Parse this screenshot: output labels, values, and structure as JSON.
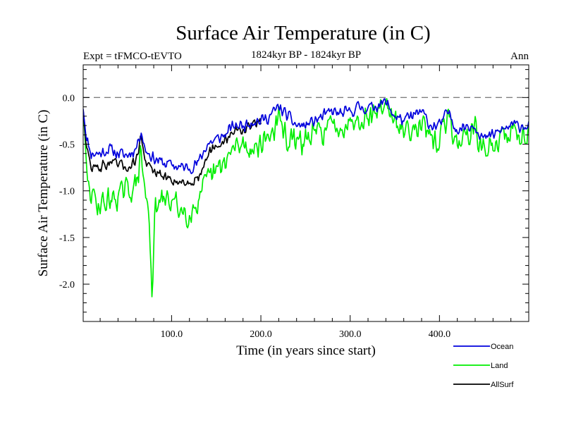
{
  "chart_data": {
    "type": "line",
    "title": "Surface Air Temperature (in C)",
    "subtitle_left": "Expt = tFMCO-tEVTO",
    "subtitle_center": "1824kyr BP - 1824kyr BP",
    "subtitle_right": "Ann",
    "xlabel": "Time (in years since start)",
    "ylabel": "Surface Air Temperature (in C)",
    "xlim": [
      1,
      500
    ],
    "ylim": [
      -2.4,
      0.35
    ],
    "xticks": [
      100,
      200,
      300,
      400
    ],
    "xtick_labels": [
      "100.0",
      "200.0",
      "300.0",
      "400.0"
    ],
    "yticks": [
      0.0,
      -0.5,
      -1.0,
      -1.5,
      -2.0
    ],
    "ytick_labels": [
      "0.0",
      "-0.5",
      "-1.0",
      "-1.5",
      "-2.0"
    ],
    "reference_line": 0.0,
    "series": [
      {
        "name": "Ocean",
        "color": "#0000dd",
        "anchors_x": [
          1,
          5,
          10,
          20,
          30,
          40,
          50,
          60,
          66,
          70,
          80,
          90,
          100,
          110,
          120,
          130,
          140,
          150,
          160,
          170,
          180,
          190,
          200,
          210,
          220,
          230,
          240,
          250,
          260,
          270,
          280,
          290,
          300,
          310,
          320,
          330,
          340,
          350,
          360,
          370,
          380,
          390,
          400,
          410,
          420,
          430,
          440,
          450,
          460,
          470,
          480,
          490,
          500
        ],
        "anchors_y": [
          -0.1,
          -0.45,
          -0.6,
          -0.6,
          -0.55,
          -0.6,
          -0.62,
          -0.55,
          -0.35,
          -0.55,
          -0.65,
          -0.7,
          -0.72,
          -0.75,
          -0.75,
          -0.7,
          -0.5,
          -0.45,
          -0.4,
          -0.3,
          -0.3,
          -0.25,
          -0.25,
          -0.2,
          -0.1,
          -0.2,
          -0.3,
          -0.3,
          -0.25,
          -0.2,
          -0.15,
          -0.18,
          -0.15,
          -0.1,
          -0.12,
          -0.08,
          -0.05,
          -0.2,
          -0.25,
          -0.2,
          -0.15,
          -0.3,
          -0.3,
          -0.15,
          -0.35,
          -0.3,
          -0.3,
          -0.45,
          -0.4,
          -0.35,
          -0.3,
          -0.3,
          -0.3
        ],
        "noise": 0.08,
        "seed": 11
      },
      {
        "name": "Land",
        "color": "#00ee00",
        "anchors_x": [
          1,
          5,
          10,
          20,
          30,
          40,
          50,
          60,
          66,
          70,
          75,
          78,
          82,
          90,
          100,
          110,
          120,
          130,
          140,
          150,
          160,
          170,
          180,
          190,
          200,
          210,
          220,
          230,
          240,
          250,
          260,
          270,
          280,
          290,
          300,
          310,
          320,
          330,
          340,
          350,
          360,
          370,
          380,
          390,
          400,
          410,
          420,
          430,
          440,
          450,
          460,
          470,
          480,
          490,
          500
        ],
        "anchors_y": [
          -0.15,
          -0.85,
          -1.05,
          -1.15,
          -1.1,
          -1.05,
          -1.0,
          -0.95,
          -0.6,
          -1.0,
          -1.3,
          -2.05,
          -1.2,
          -1.1,
          -1.1,
          -1.2,
          -1.25,
          -1.1,
          -0.9,
          -0.8,
          -0.7,
          -0.55,
          -0.5,
          -0.55,
          -0.5,
          -0.4,
          -0.25,
          -0.45,
          -0.5,
          -0.45,
          -0.4,
          -0.35,
          -0.3,
          -0.3,
          -0.25,
          -0.2,
          -0.2,
          -0.15,
          -0.05,
          -0.3,
          -0.35,
          -0.3,
          -0.25,
          -0.5,
          -0.45,
          -0.2,
          -0.5,
          -0.4,
          -0.35,
          -0.6,
          -0.5,
          -0.45,
          -0.35,
          -0.4,
          -0.35
        ],
        "noise": 0.17,
        "seed": 29
      },
      {
        "name": "AllSurf",
        "color": "#000000",
        "anchors_x": [
          1,
          5,
          10,
          20,
          30,
          40,
          50,
          60,
          66,
          70,
          80,
          90,
          100,
          110,
          120,
          130,
          140,
          150,
          160,
          170,
          180,
          190,
          200
        ],
        "anchors_y": [
          -0.12,
          -0.55,
          -0.75,
          -0.75,
          -0.7,
          -0.72,
          -0.75,
          -0.68,
          -0.4,
          -0.68,
          -0.8,
          -0.85,
          -0.88,
          -0.9,
          -0.92,
          -0.85,
          -0.6,
          -0.55,
          -0.45,
          -0.35,
          -0.35,
          -0.3,
          -0.28
        ],
        "noise": 0.07,
        "seed": 47
      }
    ],
    "legend_position": "bottom-right"
  }
}
